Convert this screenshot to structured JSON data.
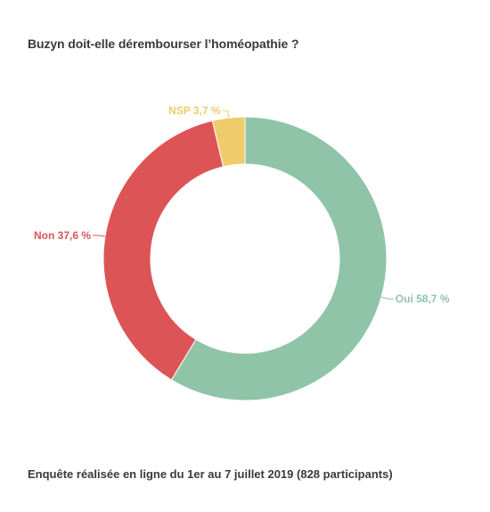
{
  "chart_data": {
    "type": "pie",
    "title": "Buzyn doit-elle dérembourser l’homéopathie ?",
    "caption": "Enquête réalisée en ligne du 1er au 7 juillet 2019 (828 participants)",
    "slices": [
      {
        "label": "Oui",
        "value": 58.7,
        "display": "Oui 58,7 %",
        "color": "#8fc4a8"
      },
      {
        "label": "Non",
        "value": 37.6,
        "display": "Non 37,6 %",
        "color": "#dc5456"
      },
      {
        "label": "NSP",
        "value": 3.7,
        "display": "NSP 3,7 %",
        "color": "#efcb6b"
      }
    ],
    "donut": true,
    "start_angle": "top",
    "direction": "clockwise"
  }
}
